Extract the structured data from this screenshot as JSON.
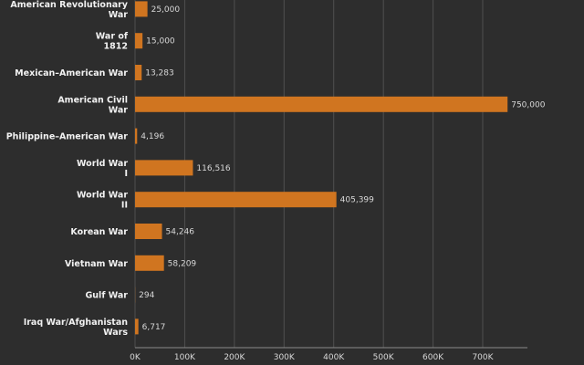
{
  "chart_data": {
    "type": "hbar",
    "color": "#d07520",
    "categories": [
      "American Revolutionary\nWar",
      "War of\n1812",
      "Mexican–American War",
      "American Civil\nWar",
      "Philippine–American War",
      "World War\nI",
      "World War\nII",
      "Korean War",
      "Vietnam War",
      "Gulf War",
      "Iraq War/Afghanistan\nWars"
    ],
    "values": [
      25000,
      15000,
      13283,
      750000,
      4196,
      116516,
      405399,
      54246,
      58209,
      294,
      6717
    ],
    "value_labels": [
      "25,000",
      "15,000",
      "13,283",
      "750,000",
      "4,196",
      "116,516",
      "405,399",
      "54,246",
      "58,209",
      "294",
      "6,717"
    ],
    "xlim": [
      0,
      790000
    ],
    "xticks": [
      {
        "value": 0,
        "label": "0K"
      },
      {
        "value": 100000,
        "label": "100K"
      },
      {
        "value": 200000,
        "label": "200K"
      },
      {
        "value": 300000,
        "label": "300K"
      },
      {
        "value": 400000,
        "label": "400K"
      },
      {
        "value": 500000,
        "label": "500K"
      },
      {
        "value": 600000,
        "label": "600K"
      },
      {
        "value": 700000,
        "label": "700K"
      }
    ],
    "grid": true
  }
}
